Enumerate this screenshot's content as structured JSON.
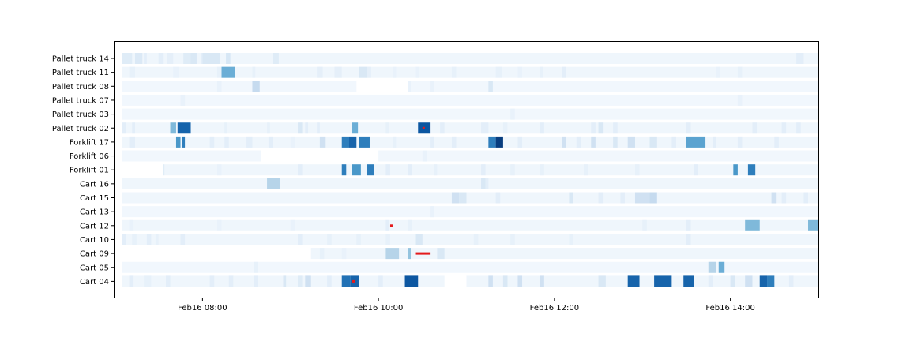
{
  "chart_data": {
    "type": "heatmap",
    "title": "",
    "xlabel": "",
    "ylabel": "",
    "x_range": [
      "Feb16 07:00",
      "Feb16 15:00"
    ],
    "x_ticks": [
      "Feb16 08:00",
      "Feb16 10:00",
      "Feb16 12:00",
      "Feb16 14:00"
    ],
    "grid": false,
    "colormap": "Blues",
    "value_scale": [
      0,
      1
    ],
    "annotation_color": "#e41a1c",
    "rows": [
      {
        "label": "Pallet truck 14",
        "base": 0.04,
        "active": [
          [
            "07:05",
            "15:00"
          ]
        ],
        "cells": [
          [
            "07:05",
            "07:12",
            0.12
          ],
          [
            "07:14",
            "07:19",
            0.14
          ],
          [
            "07:20",
            "07:22",
            0.1
          ],
          [
            "07:30",
            "07:33",
            0.1
          ],
          [
            "07:36",
            "07:40",
            0.09
          ],
          [
            "07:47",
            "07:52",
            0.12
          ],
          [
            "07:52",
            "07:56",
            0.15
          ],
          [
            "07:59",
            "08:00",
            0.1
          ],
          [
            "08:00",
            "08:12",
            0.15
          ],
          [
            "08:16",
            "08:19",
            0.16
          ],
          [
            "08:48",
            "08:52",
            0.12
          ],
          [
            "14:45",
            "14:50",
            0.1
          ]
        ],
        "marks": []
      },
      {
        "label": "Pallet truck 11",
        "base": 0.04,
        "active": [
          [
            "07:05",
            "15:00"
          ]
        ],
        "cells": [
          [
            "07:10",
            "07:14",
            0.08
          ],
          [
            "07:40",
            "07:44",
            0.07
          ],
          [
            "08:10",
            "08:13",
            0.08
          ],
          [
            "08:13",
            "08:22",
            0.5
          ],
          [
            "08:34",
            "08:36",
            0.08
          ],
          [
            "09:18",
            "09:22",
            0.09
          ],
          [
            "09:30",
            "09:35",
            0.09
          ],
          [
            "09:47",
            "09:52",
            0.15
          ],
          [
            "09:52",
            "09:55",
            0.09
          ],
          [
            "10:10",
            "10:12",
            0.07
          ],
          [
            "10:25",
            "10:28",
            0.07
          ],
          [
            "10:50",
            "10:53",
            0.08
          ],
          [
            "11:20",
            "11:24",
            0.08
          ],
          [
            "11:35",
            "11:38",
            0.07
          ],
          [
            "11:50",
            "11:52",
            0.08
          ],
          [
            "12:05",
            "12:08",
            0.1
          ],
          [
            "13:50",
            "13:53",
            0.07
          ],
          [
            "14:05",
            "14:08",
            0.08
          ]
        ],
        "marks": []
      },
      {
        "label": "Pallet truck 08",
        "base": 0.03,
        "active": [
          [
            "07:05",
            "09:45"
          ],
          [
            "10:20",
            "15:00"
          ]
        ],
        "cells": [
          [
            "08:10",
            "08:13",
            0.07
          ],
          [
            "08:34",
            "08:39",
            0.25
          ],
          [
            "10:20",
            "10:22",
            0.07
          ],
          [
            "10:35",
            "10:38",
            0.07
          ],
          [
            "11:15",
            "11:18",
            0.15
          ]
        ],
        "marks": []
      },
      {
        "label": "Pallet truck 07",
        "base": 0.03,
        "active": [
          [
            "07:05",
            "15:00"
          ]
        ],
        "cells": [
          [
            "07:45",
            "07:48",
            0.07
          ],
          [
            "14:05",
            "14:08",
            0.07
          ]
        ],
        "marks": []
      },
      {
        "label": "Pallet truck 03",
        "base": 0.03,
        "active": [
          [
            "07:05",
            "15:00"
          ]
        ],
        "cells": [
          [
            "11:30",
            "11:33",
            0.07
          ]
        ],
        "marks": []
      },
      {
        "label": "Pallet truck 02",
        "base": 0.04,
        "active": [
          [
            "07:05",
            "15:00"
          ]
        ],
        "cells": [
          [
            "07:05",
            "07:08",
            0.1
          ],
          [
            "07:12",
            "07:14",
            0.1
          ],
          [
            "07:38",
            "07:42",
            0.45
          ],
          [
            "07:43",
            "07:52",
            0.8
          ],
          [
            "08:15",
            "08:17",
            0.08
          ],
          [
            "08:44",
            "08:46",
            0.08
          ],
          [
            "09:05",
            "09:08",
            0.15
          ],
          [
            "09:10",
            "09:12",
            0.1
          ],
          [
            "09:18",
            "09:20",
            0.1
          ],
          [
            "09:42",
            "09:46",
            0.5
          ],
          [
            "10:05",
            "10:07",
            0.08
          ],
          [
            "10:27",
            "10:35",
            0.85
          ],
          [
            "10:42",
            "10:45",
            0.1
          ],
          [
            "11:10",
            "11:15",
            0.1
          ],
          [
            "11:25",
            "11:28",
            0.08
          ],
          [
            "11:50",
            "11:53",
            0.1
          ],
          [
            "12:25",
            "12:28",
            0.1
          ],
          [
            "12:30",
            "12:33",
            0.15
          ],
          [
            "12:40",
            "12:43",
            0.1
          ],
          [
            "13:30",
            "13:33",
            0.1
          ],
          [
            "14:15",
            "14:18",
            0.1
          ],
          [
            "14:35",
            "14:38",
            0.1
          ],
          [
            "14:45",
            "14:48",
            0.1
          ]
        ],
        "marks": [
          [
            "10:30",
            "10:31"
          ]
        ]
      },
      {
        "label": "Forklift 17",
        "base": 0.04,
        "active": [
          [
            "07:05",
            "15:00"
          ]
        ],
        "cells": [
          [
            "07:10",
            "07:14",
            0.1
          ],
          [
            "07:42",
            "07:45",
            0.6
          ],
          [
            "07:46",
            "07:48",
            0.7
          ],
          [
            "08:05",
            "08:08",
            0.1
          ],
          [
            "08:15",
            "08:18",
            0.1
          ],
          [
            "08:30",
            "08:34",
            0.1
          ],
          [
            "08:45",
            "08:48",
            0.1
          ],
          [
            "09:00",
            "09:03",
            0.07
          ],
          [
            "09:20",
            "09:24",
            0.2
          ],
          [
            "09:35",
            "09:40",
            0.7
          ],
          [
            "09:40",
            "09:45",
            0.8
          ],
          [
            "09:47",
            "09:54",
            0.7
          ],
          [
            "10:10",
            "10:12",
            0.08
          ],
          [
            "10:35",
            "10:38",
            0.1
          ],
          [
            "10:50",
            "10:53",
            0.1
          ],
          [
            "11:15",
            "11:20",
            0.7
          ],
          [
            "11:20",
            "11:25",
            0.95
          ],
          [
            "11:35",
            "11:38",
            0.1
          ],
          [
            "12:05",
            "12:08",
            0.2
          ],
          [
            "12:15",
            "12:18",
            0.1
          ],
          [
            "12:25",
            "12:28",
            0.2
          ],
          [
            "12:40",
            "12:43",
            0.15
          ],
          [
            "12:50",
            "12:55",
            0.2
          ],
          [
            "13:05",
            "13:10",
            0.15
          ],
          [
            "13:20",
            "13:23",
            0.1
          ],
          [
            "13:30",
            "13:43",
            0.55
          ],
          [
            "13:48",
            "13:50",
            0.1
          ],
          [
            "14:05",
            "14:08",
            0.1
          ],
          [
            "14:30",
            "14:33",
            0.1
          ]
        ],
        "marks": []
      },
      {
        "label": "Forklift 06",
        "base": 0.03,
        "active": [
          [
            "07:05",
            "08:40"
          ],
          [
            "10:00",
            "15:00"
          ]
        ],
        "cells": [
          [
            "10:30",
            "10:33",
            0.07
          ]
        ],
        "marks": []
      },
      {
        "label": "Forklift 01",
        "base": 0.04,
        "active": [
          [
            "07:33",
            "15:00"
          ]
        ],
        "cells": [
          [
            "07:33",
            "07:34",
            0.15
          ],
          [
            "08:10",
            "08:13",
            0.07
          ],
          [
            "09:05",
            "09:08",
            0.1
          ],
          [
            "09:35",
            "09:38",
            0.7
          ],
          [
            "09:42",
            "09:48",
            0.6
          ],
          [
            "09:52",
            "09:57",
            0.7
          ],
          [
            "10:05",
            "10:08",
            0.1
          ],
          [
            "10:20",
            "10:23",
            0.1
          ],
          [
            "10:38",
            "10:40",
            0.08
          ],
          [
            "11:10",
            "11:13",
            0.1
          ],
          [
            "11:30",
            "11:33",
            0.08
          ],
          [
            "11:50",
            "11:53",
            0.08
          ],
          [
            "12:20",
            "12:23",
            0.08
          ],
          [
            "12:55",
            "12:58",
            0.08
          ],
          [
            "13:35",
            "13:38",
            0.1
          ],
          [
            "14:02",
            "14:05",
            0.6
          ],
          [
            "14:12",
            "14:17",
            0.7
          ]
        ],
        "marks": []
      },
      {
        "label": "Cart 16",
        "base": 0.04,
        "active": [
          [
            "07:05",
            "15:00"
          ]
        ],
        "cells": [
          [
            "08:44",
            "08:53",
            0.3
          ],
          [
            "11:10",
            "11:13",
            0.15
          ],
          [
            "11:13",
            "11:15",
            0.1
          ]
        ],
        "marks": []
      },
      {
        "label": "Cart 15",
        "base": 0.04,
        "active": [
          [
            "07:05",
            "15:00"
          ]
        ],
        "cells": [
          [
            "10:50",
            "10:55",
            0.2
          ],
          [
            "10:55",
            "11:00",
            0.15
          ],
          [
            "11:20",
            "11:23",
            0.1
          ],
          [
            "12:10",
            "12:13",
            0.15
          ],
          [
            "12:30",
            "12:33",
            0.1
          ],
          [
            "12:45",
            "12:48",
            0.1
          ],
          [
            "12:55",
            "13:05",
            0.2
          ],
          [
            "13:05",
            "13:10",
            0.25
          ],
          [
            "14:28",
            "14:31",
            0.2
          ],
          [
            "14:35",
            "14:38",
            0.1
          ],
          [
            "14:50",
            "14:53",
            0.1
          ]
        ],
        "marks": []
      },
      {
        "label": "Cart 13",
        "base": 0.03,
        "active": [
          [
            "07:05",
            "15:00"
          ]
        ],
        "cells": [
          [
            "10:35",
            "10:38",
            0.07
          ]
        ],
        "marks": []
      },
      {
        "label": "Cart 12",
        "base": 0.04,
        "active": [
          [
            "07:05",
            "15:00"
          ]
        ],
        "cells": [
          [
            "07:10",
            "07:13",
            0.07
          ],
          [
            "08:10",
            "08:13",
            0.07
          ],
          [
            "09:00",
            "09:03",
            0.07
          ],
          [
            "10:05",
            "10:07",
            0.1
          ],
          [
            "10:20",
            "10:23",
            0.08
          ],
          [
            "13:00",
            "13:03",
            0.08
          ],
          [
            "13:30",
            "13:33",
            0.1
          ],
          [
            "14:10",
            "14:20",
            0.45
          ],
          [
            "14:53",
            "15:00",
            0.45
          ]
        ],
        "marks": [
          [
            "10:08",
            "10:09"
          ]
        ]
      },
      {
        "label": "Cart 10",
        "base": 0.04,
        "active": [
          [
            "07:05",
            "15:00"
          ]
        ],
        "cells": [
          [
            "07:05",
            "07:08",
            0.1
          ],
          [
            "07:12",
            "07:15",
            0.08
          ],
          [
            "07:22",
            "07:25",
            0.1
          ],
          [
            "07:28",
            "07:30",
            0.08
          ],
          [
            "07:45",
            "07:48",
            0.1
          ],
          [
            "09:05",
            "09:08",
            0.1
          ],
          [
            "09:25",
            "09:28",
            0.08
          ],
          [
            "09:45",
            "09:48",
            0.08
          ],
          [
            "10:05",
            "10:08",
            0.08
          ],
          [
            "10:25",
            "10:30",
            0.15
          ],
          [
            "11:05",
            "11:08",
            0.08
          ],
          [
            "11:30",
            "11:33",
            0.08
          ],
          [
            "12:10",
            "12:13",
            0.08
          ],
          [
            "13:30",
            "13:33",
            0.1
          ]
        ],
        "marks": []
      },
      {
        "label": "Cart 09",
        "base": 0.04,
        "active": [
          [
            "09:14",
            "15:00"
          ]
        ],
        "cells": [
          [
            "09:20",
            "09:23",
            0.08
          ],
          [
            "09:35",
            "09:38",
            0.07
          ],
          [
            "10:05",
            "10:10",
            0.3
          ],
          [
            "10:10",
            "10:14",
            0.3
          ],
          [
            "10:20",
            "10:22",
            0.4
          ],
          [
            "10:40",
            "10:45",
            0.15
          ]
        ],
        "marks": [
          [
            "10:25",
            "10:35"
          ]
        ]
      },
      {
        "label": "Cart 05",
        "base": 0.03,
        "active": [
          [
            "07:05",
            "15:00"
          ]
        ],
        "cells": [
          [
            "08:35",
            "08:38",
            0.08
          ],
          [
            "13:45",
            "13:50",
            0.3
          ],
          [
            "13:52",
            "13:56",
            0.5
          ]
        ],
        "marks": []
      },
      {
        "label": "Cart 04",
        "base": 0.04,
        "active": [
          [
            "07:05",
            "10:45"
          ],
          [
            "11:00",
            "15:00"
          ]
        ],
        "cells": [
          [
            "07:10",
            "07:13",
            0.1
          ],
          [
            "07:20",
            "07:25",
            0.08
          ],
          [
            "07:35",
            "07:38",
            0.1
          ],
          [
            "08:05",
            "08:08",
            0.1
          ],
          [
            "08:18",
            "08:21",
            0.1
          ],
          [
            "08:35",
            "08:38",
            0.1
          ],
          [
            "08:55",
            "08:57",
            0.15
          ],
          [
            "09:05",
            "09:08",
            0.12
          ],
          [
            "09:10",
            "09:14",
            0.2
          ],
          [
            "09:25",
            "09:28",
            0.1
          ],
          [
            "09:35",
            "09:41",
            0.75
          ],
          [
            "09:41",
            "09:47",
            0.8
          ],
          [
            "10:00",
            "10:03",
            0.1
          ],
          [
            "10:18",
            "10:27",
            0.85
          ],
          [
            "11:15",
            "11:18",
            0.2
          ],
          [
            "11:25",
            "11:28",
            0.15
          ],
          [
            "11:35",
            "11:38",
            0.2
          ],
          [
            "11:50",
            "11:53",
            0.2
          ],
          [
            "12:30",
            "12:35",
            0.15
          ],
          [
            "12:50",
            "12:58",
            0.8
          ],
          [
            "13:08",
            "13:20",
            0.8
          ],
          [
            "13:28",
            "13:35",
            0.8
          ],
          [
            "13:45",
            "13:48",
            0.1
          ],
          [
            "14:00",
            "14:03",
            0.15
          ],
          [
            "14:10",
            "14:15",
            0.2
          ],
          [
            "14:20",
            "14:25",
            0.8
          ],
          [
            "14:25",
            "14:30",
            0.7
          ],
          [
            "14:40",
            "14:43",
            0.1
          ]
        ],
        "marks": [
          [
            "09:42",
            "09:44"
          ]
        ]
      }
    ]
  }
}
